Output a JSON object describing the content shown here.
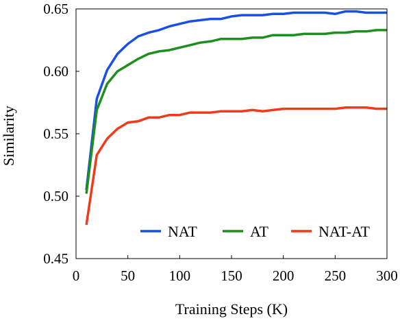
{
  "chart_data": {
    "type": "line",
    "xlabel": "Training Steps (K)",
    "ylabel": "Similarity",
    "xlim": [
      0,
      300
    ],
    "ylim": [
      0.45,
      0.65
    ],
    "xticks": [
      "0",
      "50",
      "100",
      "150",
      "200",
      "250",
      "300"
    ],
    "yticks": [
      "0.45",
      "0.50",
      "0.55",
      "0.60",
      "0.65"
    ],
    "grid": false,
    "legend_position": "bottom-right",
    "x": [
      10,
      20,
      30,
      40,
      50,
      60,
      70,
      80,
      90,
      100,
      110,
      120,
      130,
      140,
      150,
      160,
      170,
      180,
      190,
      200,
      210,
      220,
      230,
      240,
      250,
      260,
      270,
      280,
      290,
      300
    ],
    "series": [
      {
        "name": "NAT",
        "color": "#1a4fe6",
        "values": [
          0.505,
          0.578,
          0.601,
          0.614,
          0.622,
          0.628,
          0.631,
          0.633,
          0.636,
          0.638,
          0.64,
          0.641,
          0.642,
          0.642,
          0.644,
          0.645,
          0.645,
          0.645,
          0.646,
          0.646,
          0.647,
          0.647,
          0.647,
          0.647,
          0.646,
          0.648,
          0.648,
          0.647,
          0.647,
          0.647
        ]
      },
      {
        "name": "AT",
        "color": "#1e8f1e",
        "values": [
          0.502,
          0.569,
          0.59,
          0.6,
          0.605,
          0.61,
          0.614,
          0.616,
          0.617,
          0.619,
          0.621,
          0.623,
          0.624,
          0.626,
          0.626,
          0.626,
          0.627,
          0.627,
          0.629,
          0.629,
          0.629,
          0.63,
          0.63,
          0.63,
          0.631,
          0.631,
          0.632,
          0.632,
          0.633,
          0.633
        ]
      },
      {
        "name": "NAT-AT",
        "color": "#f03a1a",
        "values": [
          0.477,
          0.533,
          0.546,
          0.554,
          0.559,
          0.56,
          0.563,
          0.563,
          0.565,
          0.565,
          0.567,
          0.567,
          0.567,
          0.568,
          0.568,
          0.568,
          0.569,
          0.568,
          0.569,
          0.57,
          0.57,
          0.57,
          0.57,
          0.57,
          0.57,
          0.571,
          0.571,
          0.571,
          0.57,
          0.57
        ]
      }
    ]
  }
}
